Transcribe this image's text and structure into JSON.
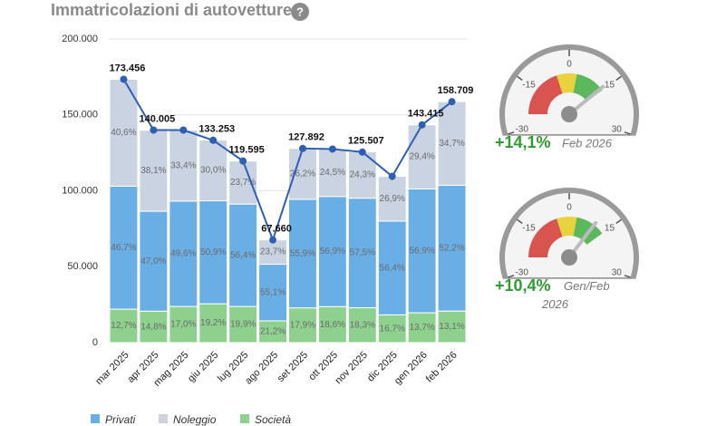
{
  "chart_data": {
    "type": "stacked-bar-line",
    "title": "Immatricolazioni di autovetture",
    "help_icon": "?",
    "categories": [
      "mar 2025",
      "apr 2025",
      "mag 2025",
      "giu 2025",
      "lug 2025",
      "ago 2025",
      "set 2025",
      "ott 2025",
      "nov 2025",
      "dic 2025",
      "gen 2026",
      "feb 2026"
    ],
    "ylim": [
      0,
      200000
    ],
    "yticks": [
      0,
      {
        "value": 50000,
        "label": "50.000"
      },
      {
        "value": 100000,
        "label": "100.000"
      },
      {
        "value": 150000,
        "label": "150.000"
      },
      {
        "value": 200000,
        "label": "200.000"
      }
    ],
    "grid": true,
    "stack_order": [
      "Società",
      "Privati",
      "Noleggio"
    ],
    "series": [
      {
        "name": "Privati",
        "color": "#6aaee6",
        "values": [
          46.7,
          47.0,
          49.6,
          50.9,
          56.4,
          55.1,
          55.9,
          56.9,
          57.5,
          56.4,
          56.9,
          52.2
        ],
        "value_labels": [
          "46,7%",
          "47,0%",
          "49,6%",
          "50,9%",
          "56,4%",
          "55,1%",
          "55,9%",
          "56,9%",
          "57,5%",
          "56,4%",
          "56,9%",
          "52,2%"
        ]
      },
      {
        "name": "Noleggio",
        "color": "#c9d3e2",
        "values": [
          40.6,
          38.1,
          33.4,
          30.0,
          23.7,
          23.7,
          26.2,
          24.5,
          24.3,
          26.9,
          29.4,
          34.7
        ],
        "value_labels": [
          "40,6%",
          "38,1%",
          "33,4%",
          "30,0%",
          "23,7%",
          "23,7%",
          "26,2%",
          "24,5%",
          "24,3%",
          "26,9%",
          "29,4%",
          "34,7%"
        ]
      },
      {
        "name": "Società",
        "color": "#8ed18e",
        "values": [
          12.7,
          14.8,
          17.0,
          19.2,
          19.9,
          21.2,
          17.9,
          18.6,
          18.3,
          16.7,
          13.7,
          13.1
        ],
        "value_labels": [
          "12,7%",
          "14,8%",
          "17,0%",
          "19,2%",
          "19,9%",
          "21,2%",
          "17,9%",
          "18,6%",
          "18,3%",
          "16,7%",
          "13,7%",
          "13,1%"
        ]
      }
    ],
    "line": {
      "color": "#2f5fb3",
      "values": [
        173456,
        140005,
        140000,
        133253,
        119595,
        67660,
        127892,
        127500,
        125507,
        109500,
        143415,
        158709
      ],
      "value_labels": [
        "173.456",
        "140.005",
        null,
        "133.253",
        "119.595",
        "67.660",
        "127.892",
        null,
        "125.507",
        null,
        "143.415",
        "158.709"
      ]
    },
    "gauge_lim": [
      -30,
      30
    ],
    "gauge_ticks": [
      -30,
      -15,
      0,
      15,
      30
    ],
    "gauge_bands": [
      {
        "from": -25,
        "to": -5,
        "color": "#d9534f"
      },
      {
        "from": -5,
        "to": 3,
        "color": "#e8d33f"
      },
      {
        "from": 3,
        "to": 15,
        "color": "#5cb85c"
      }
    ],
    "gauges": [
      {
        "value": 14.1,
        "value_label": "+14,1%",
        "period": "Feb 2026"
      },
      {
        "value": 10.4,
        "value_label": "+10,4%",
        "period": "Gen/Feb 2026"
      }
    ]
  }
}
